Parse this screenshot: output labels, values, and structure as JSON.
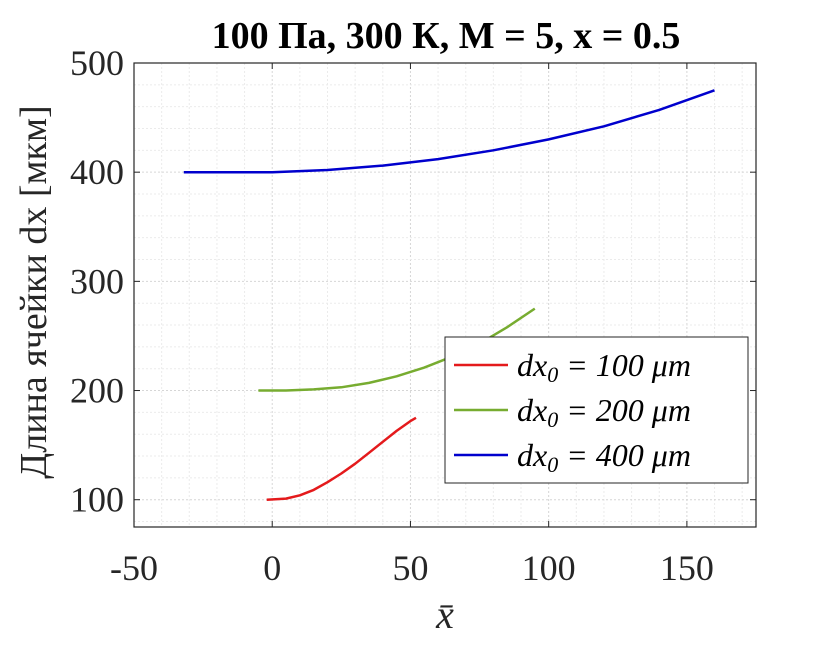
{
  "chart_data": {
    "type": "line",
    "title": "100 Па, 300 К, M = 5, x = 0.5",
    "xlabel": "x̄",
    "ylabel": "Длина ячейки dx [мкм]",
    "xlim": [
      -50,
      175
    ],
    "ylim": [
      75,
      500
    ],
    "xticks": [
      -50,
      0,
      50,
      100,
      150
    ],
    "yticks": [
      100,
      200,
      300,
      400,
      500
    ],
    "grid": true,
    "minor_grid": true,
    "legend_position": "lower-right",
    "series": [
      {
        "name": "dx_0 = 100 μm",
        "legend_base": "dx",
        "legend_sub": "0",
        "legend_rest": " = 100 μm",
        "color": "#e41a1c",
        "x": [
          -2,
          5,
          10,
          15,
          20,
          25,
          30,
          35,
          40,
          45,
          50,
          52
        ],
        "y": [
          100,
          101,
          104,
          109,
          116,
          124,
          133,
          143,
          153,
          163,
          172,
          175
        ]
      },
      {
        "name": "dx_0 = 200 μm",
        "legend_base": "dx",
        "legend_sub": "0",
        "legend_rest": " = 200 μm",
        "color": "#77ac30",
        "x": [
          -5,
          5,
          15,
          25,
          35,
          45,
          55,
          65,
          75,
          85,
          95
        ],
        "y": [
          200,
          200,
          201,
          203,
          207,
          213,
          221,
          231,
          243,
          258,
          275
        ]
      },
      {
        "name": "dx_0 = 400 μm",
        "legend_base": "dx",
        "legend_sub": "0",
        "legend_rest": " = 400 μm",
        "color": "#0000cd",
        "x": [
          -32,
          0,
          20,
          40,
          60,
          80,
          100,
          120,
          140,
          160
        ],
        "y": [
          400,
          400,
          402,
          406,
          412,
          420,
          430,
          442,
          457,
          475
        ]
      }
    ]
  }
}
